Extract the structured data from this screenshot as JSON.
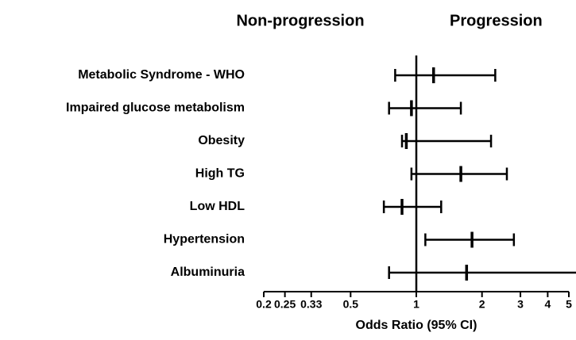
{
  "chart_data": {
    "type": "forest",
    "left_header": "Non-progression",
    "right_header": "Progression",
    "x_label": "Odds Ratio (95% CI)",
    "categories": [
      "Metabolic Syndrome - WHO",
      "Impaired glucose metabolism",
      "Obesity",
      "High TG",
      "Low HDL",
      "Hypertension",
      "Albuminuria"
    ],
    "values": [
      1.2,
      0.95,
      0.9,
      1.6,
      0.86,
      1.8,
      1.7
    ],
    "lower": [
      0.8,
      0.75,
      0.86,
      0.95,
      0.71,
      1.1,
      0.75
    ],
    "upper": [
      2.3,
      1.6,
      2.2,
      2.6,
      1.3,
      2.8,
      5.5
    ],
    "xlim": [
      0.2,
      5
    ],
    "xticks": [
      0.2,
      0.25,
      0.33,
      0.5,
      1,
      2,
      3,
      4,
      5
    ],
    "log_x": true,
    "reference_line": 1,
    "color": "#000000"
  }
}
